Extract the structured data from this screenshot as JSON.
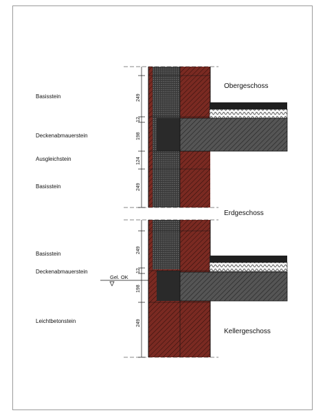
{
  "drawing": {
    "layer_labels": {
      "basis_top": "Basisstein",
      "decke_top": "Deckenabmauerstein",
      "ausgleich": "Ausgleichstein",
      "basis_mid": "Basisstein",
      "basis_low": "Basisstein",
      "decke_low": "Deckenabmauerstein",
      "leichtbeton": "Leichtbetonstein"
    },
    "floor_labels": {
      "upper": "Obergeschoss",
      "ground": "Erdgeschoss",
      "basement": "Kellergeschoss"
    },
    "ground_level_label": "Gel. OK",
    "dimensions": {
      "d1": "249",
      "d2": "12",
      "d3": "198",
      "d4": "124",
      "d5": "249",
      "d6": "249",
      "d7": "12",
      "d8": "198",
      "d9": "249"
    },
    "colors": {
      "masonry_red": "#7a2a22",
      "dark_block": "#333333",
      "slab_gray": "#4a4a4a",
      "insulation": "#f2f2f2",
      "line": "#111111"
    }
  }
}
